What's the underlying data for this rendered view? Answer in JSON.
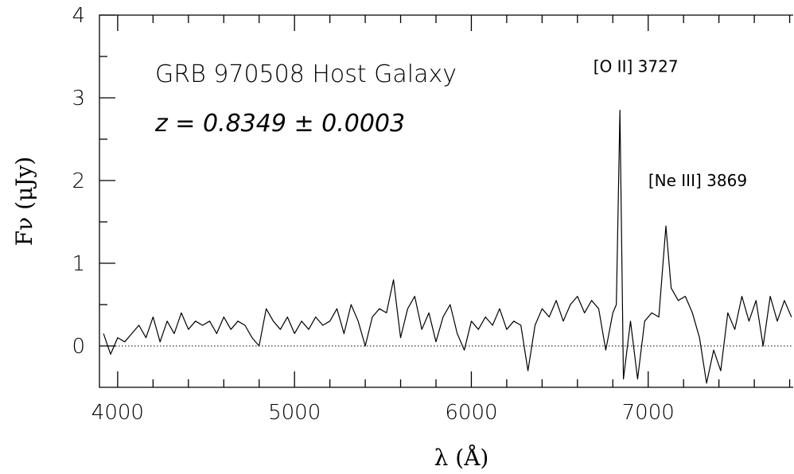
{
  "chart_data": {
    "type": "line",
    "title": "GRB 970508 Host Galaxy",
    "subtitle": "z = 0.8349 ± 0.0003",
    "x_label": "λ (Å)",
    "y_label": "Fν (μJy)",
    "annotations": [
      {
        "text": "[O II] 3727",
        "x": 6840
      },
      {
        "text": "[Ne III] 3869",
        "x": 7100
      }
    ],
    "reference_line": 0,
    "x": [
      3920,
      3960,
      4000,
      4040,
      4080,
      4120,
      4160,
      4200,
      4240,
      4280,
      4320,
      4360,
      4400,
      4440,
      4480,
      4520,
      4560,
      4600,
      4640,
      4680,
      4720,
      4760,
      4800,
      4840,
      4880,
      4920,
      4960,
      5000,
      5040,
      5080,
      5120,
      5160,
      5200,
      5240,
      5280,
      5320,
      5360,
      5400,
      5440,
      5480,
      5520,
      5560,
      5600,
      5640,
      5680,
      5720,
      5760,
      5800,
      5840,
      5880,
      5920,
      5960,
      6000,
      6040,
      6080,
      6120,
      6160,
      6200,
      6240,
      6280,
      6320,
      6360,
      6400,
      6440,
      6480,
      6520,
      6560,
      6600,
      6640,
      6680,
      6720,
      6760,
      6800,
      6820,
      6840,
      6860,
      6900,
      6940,
      6980,
      7020,
      7060,
      7100,
      7130,
      7170,
      7210,
      7250,
      7290,
      7330,
      7370,
      7410,
      7450,
      7490,
      7530,
      7570,
      7610,
      7650,
      7690,
      7730,
      7770,
      7810
    ],
    "series": [
      {
        "name": "spectrum",
        "color": "#000000",
        "values": [
          0.15,
          -0.1,
          0.1,
          0.05,
          0.15,
          0.25,
          0.1,
          0.35,
          0.05,
          0.3,
          0.15,
          0.4,
          0.2,
          0.3,
          0.25,
          0.3,
          0.15,
          0.35,
          0.2,
          0.3,
          0.25,
          0.1,
          0.0,
          0.45,
          0.3,
          0.2,
          0.35,
          0.15,
          0.3,
          0.2,
          0.35,
          0.25,
          0.3,
          0.45,
          0.15,
          0.5,
          0.3,
          0.0,
          0.35,
          0.45,
          0.4,
          0.8,
          0.1,
          0.45,
          0.6,
          0.2,
          0.4,
          0.05,
          0.35,
          0.5,
          0.15,
          -0.05,
          0.3,
          0.2,
          0.35,
          0.25,
          0.45,
          0.2,
          0.3,
          0.25,
          -0.3,
          0.25,
          0.45,
          0.35,
          0.55,
          0.3,
          0.5,
          0.6,
          0.4,
          0.55,
          0.45,
          -0.05,
          0.4,
          0.5,
          2.85,
          -0.4,
          0.3,
          -0.4,
          0.3,
          0.4,
          0.35,
          1.45,
          0.7,
          0.55,
          0.6,
          0.4,
          0.1,
          -0.45,
          -0.05,
          -0.3,
          0.4,
          0.2,
          0.6,
          0.3,
          0.55,
          0.0,
          0.6,
          0.3,
          0.55,
          0.35
        ]
      }
    ],
    "xlim": [
      3897,
      7820
    ],
    "ylim": [
      -0.5,
      4
    ],
    "xticks": [
      4000,
      5000,
      6000,
      7000
    ],
    "yticks": [
      0,
      1,
      2,
      3,
      4
    ],
    "xminorticks": [
      4200,
      4400,
      4600,
      4800,
      5200,
      5400,
      5600,
      5800,
      6200,
      6400,
      6600,
      6800,
      7200,
      7400,
      7600,
      7800
    ],
    "yminorticks": [
      0.5,
      1.5,
      2.5,
      3.5
    ],
    "grid": false
  }
}
